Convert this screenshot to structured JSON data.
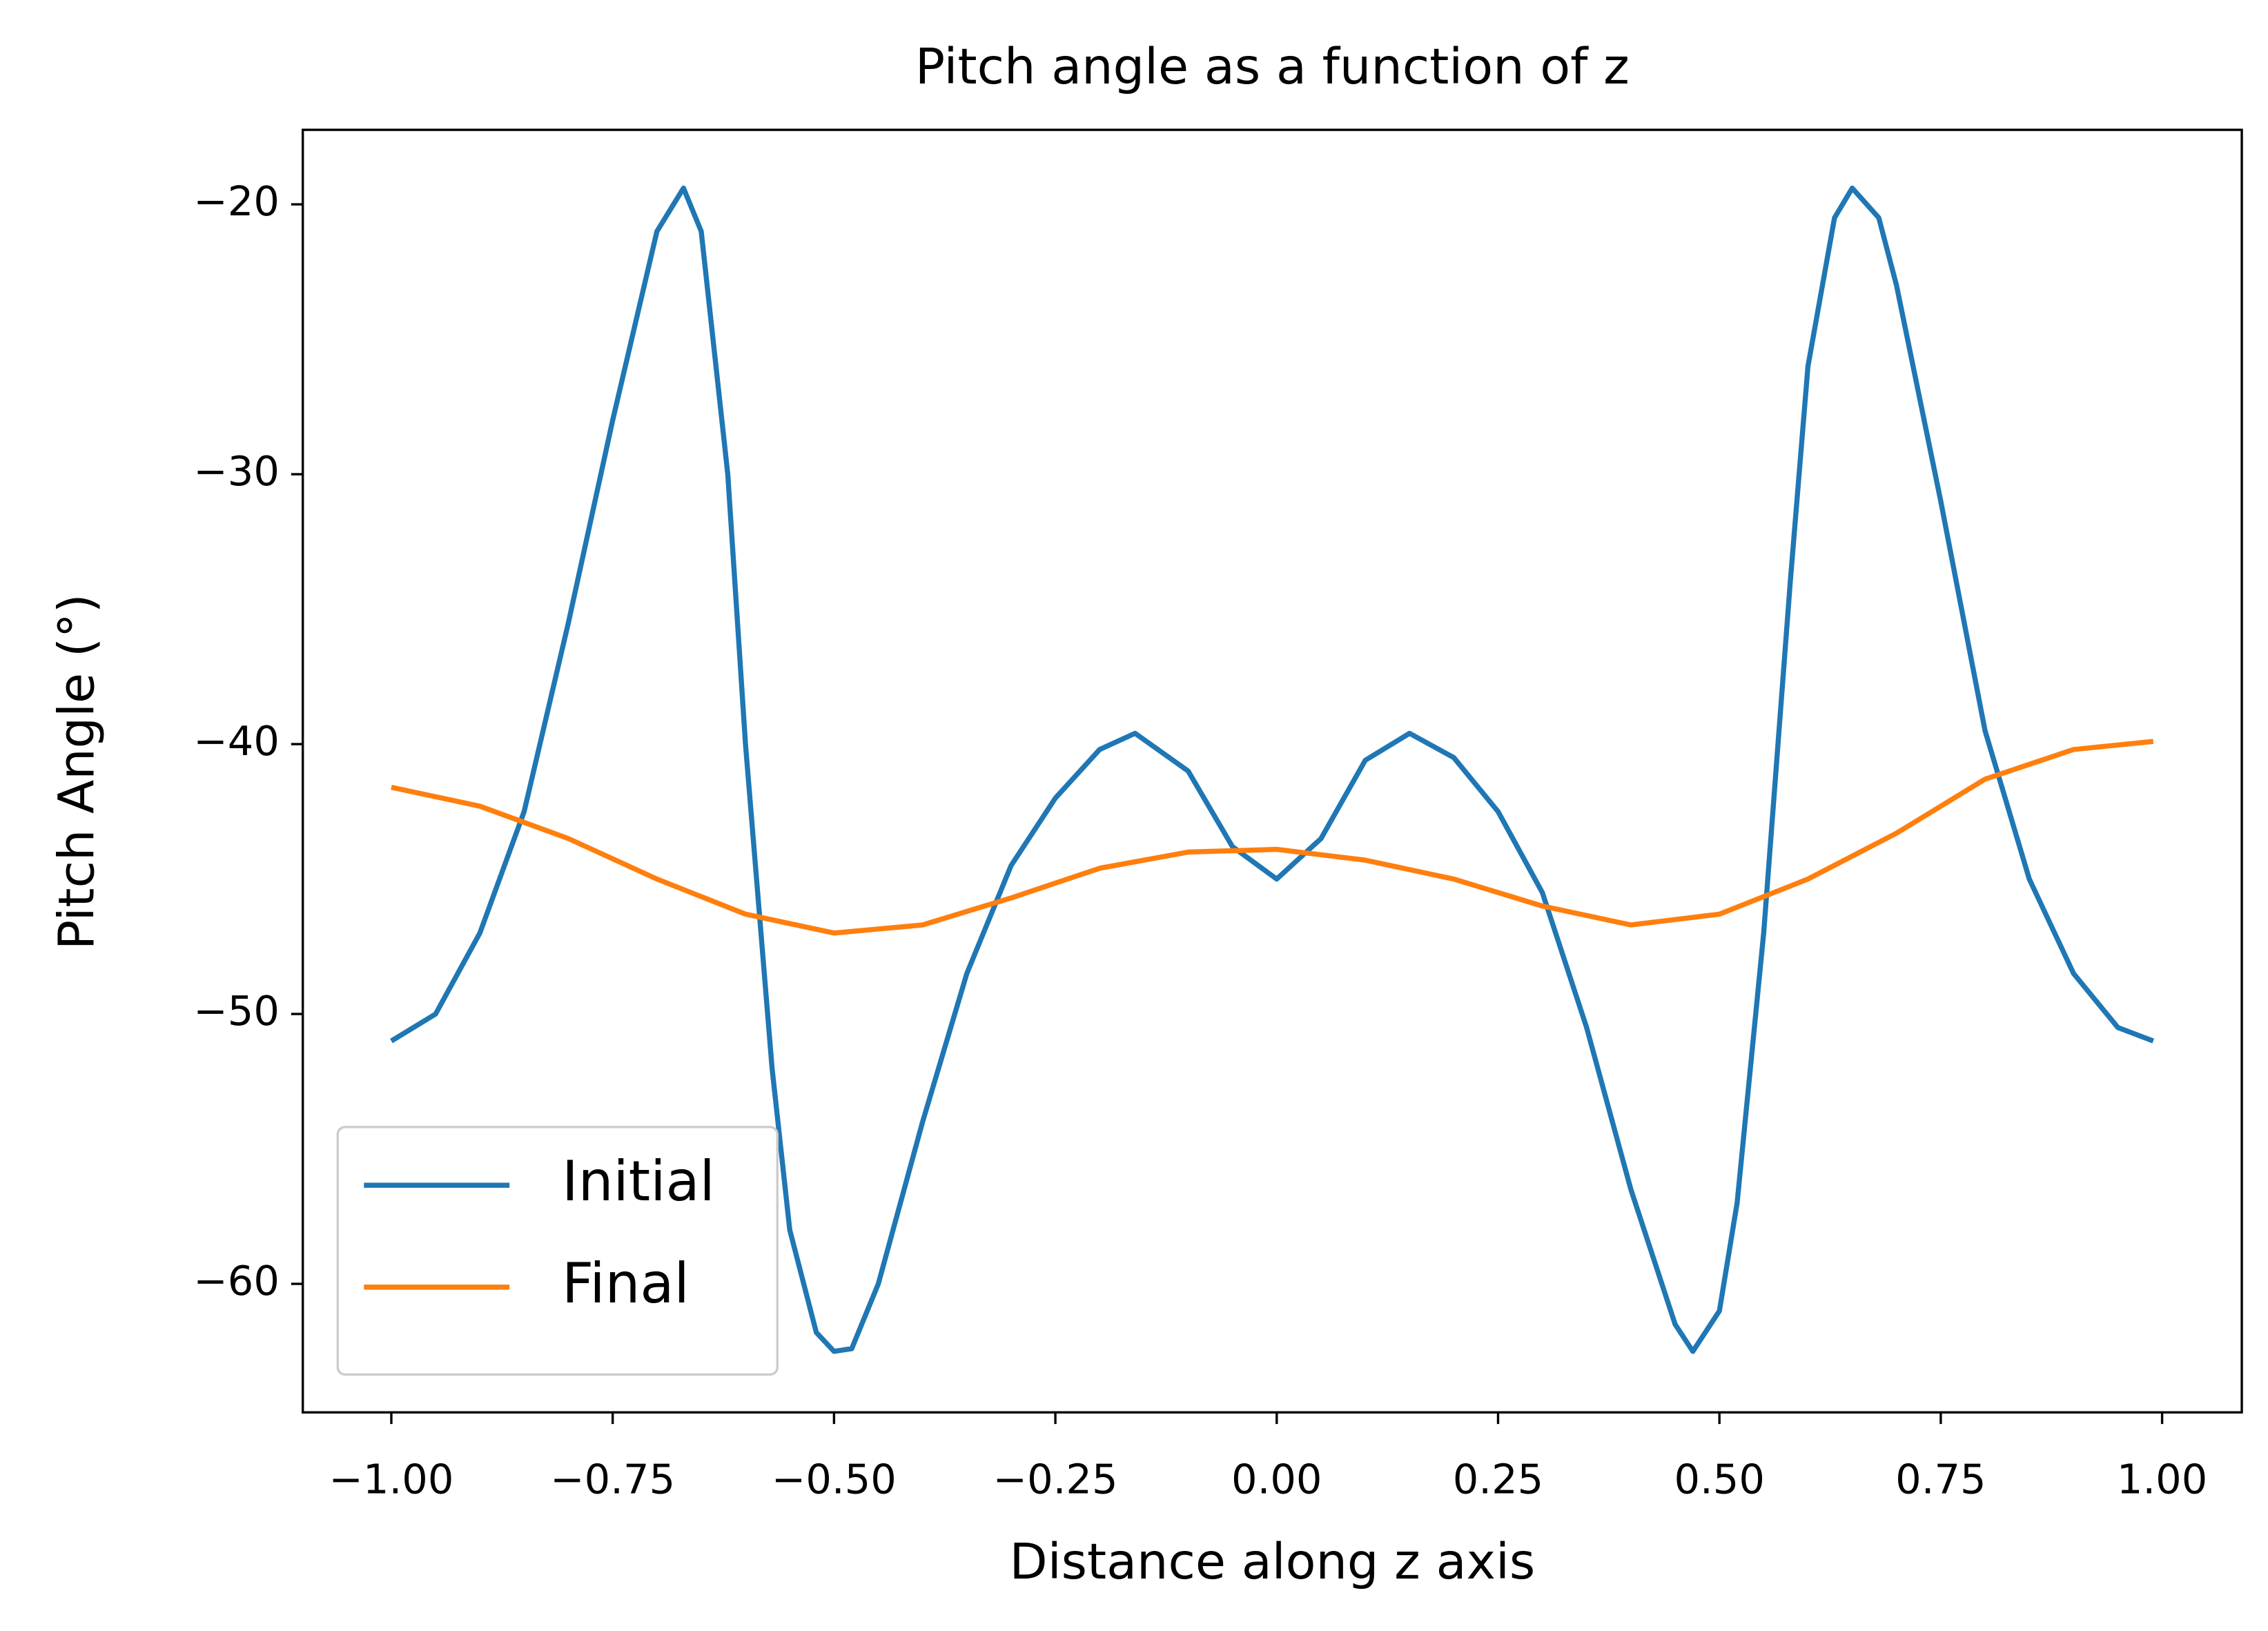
{
  "chart_data": {
    "type": "line",
    "title": "Pitch angle as a function of z",
    "xlabel": "Distance along z axis",
    "ylabel": "Pitch Angle (°)",
    "xlim": [
      -1.1,
      1.09
    ],
    "ylim": [
      -64.76,
      -17.24
    ],
    "xticks": [
      {
        "value": -1,
        "label": "−1.00"
      },
      {
        "value": -0.75,
        "label": "−0.75"
      },
      {
        "value": -0.5,
        "label": "−0.50"
      },
      {
        "value": -0.25,
        "label": "−0.25"
      },
      {
        "value": 0,
        "label": "0.00"
      },
      {
        "value": 0.25,
        "label": "0.25"
      },
      {
        "value": 0.5,
        "label": "0.50"
      },
      {
        "value": 0.75,
        "label": "0.75"
      },
      {
        "value": 1,
        "label": "1.00"
      }
    ],
    "yticks": [
      {
        "value": -20,
        "label": "−20"
      },
      {
        "value": -30,
        "label": "−30"
      },
      {
        "value": -40,
        "label": "−40"
      },
      {
        "value": -50,
        "label": "−50"
      },
      {
        "value": -60,
        "label": "−60"
      }
    ],
    "grid": false,
    "legend": "lower left",
    "series": [
      {
        "name": "Initial",
        "color": "#1f77b4",
        "x": [
          -1,
          -0.95,
          -0.9,
          -0.85,
          -0.8,
          -0.75,
          -0.7,
          -0.67,
          -0.65,
          -0.62,
          -0.6,
          -0.57,
          -0.55,
          -0.52,
          -0.5,
          -0.48,
          -0.45,
          -0.4,
          -0.35,
          -0.3,
          -0.25,
          -0.2,
          -0.16,
          -0.1,
          -0.05,
          0,
          0.05,
          0.1,
          0.15,
          0.2,
          0.25,
          0.3,
          0.35,
          0.4,
          0.45,
          0.47,
          0.5,
          0.52,
          0.55,
          0.58,
          0.6,
          0.63,
          0.65,
          0.68,
          0.7,
          0.75,
          0.8,
          0.85,
          0.9,
          0.95,
          0.99
        ],
        "values": [
          -51,
          -50,
          -47,
          -42.5,
          -35.5,
          -28,
          -21,
          -19.4,
          -21,
          -30,
          -40,
          -52,
          -58,
          -61.8,
          -62.5,
          -62.4,
          -60,
          -54,
          -48.5,
          -44.5,
          -42,
          -40.2,
          -39.6,
          -41,
          -43.8,
          -45,
          -43.5,
          -40.6,
          -39.6,
          -40.5,
          -42.5,
          -45.5,
          -50.5,
          -56.5,
          -61.5,
          -62.5,
          -61,
          -57,
          -47,
          -34,
          -26,
          -20.5,
          -19.4,
          -20.5,
          -23,
          -31,
          -39.5,
          -45,
          -48.5,
          -50.5,
          -51
        ]
      },
      {
        "name": "Final",
        "color": "#ff7f0e",
        "x": [
          -1,
          -0.9,
          -0.8,
          -0.7,
          -0.6,
          -0.5,
          -0.4,
          -0.3,
          -0.2,
          -0.1,
          0,
          0.1,
          0.2,
          0.3,
          0.4,
          0.5,
          0.6,
          0.7,
          0.8,
          0.9,
          0.99
        ],
        "values": [
          -41.6,
          -42.3,
          -43.5,
          -45,
          -46.3,
          -47,
          -46.7,
          -45.7,
          -44.6,
          -44,
          -43.9,
          -44.3,
          -45,
          -46,
          -46.7,
          -46.3,
          -45,
          -43.3,
          -41.3,
          -40.2,
          -39.9
        ]
      }
    ]
  }
}
